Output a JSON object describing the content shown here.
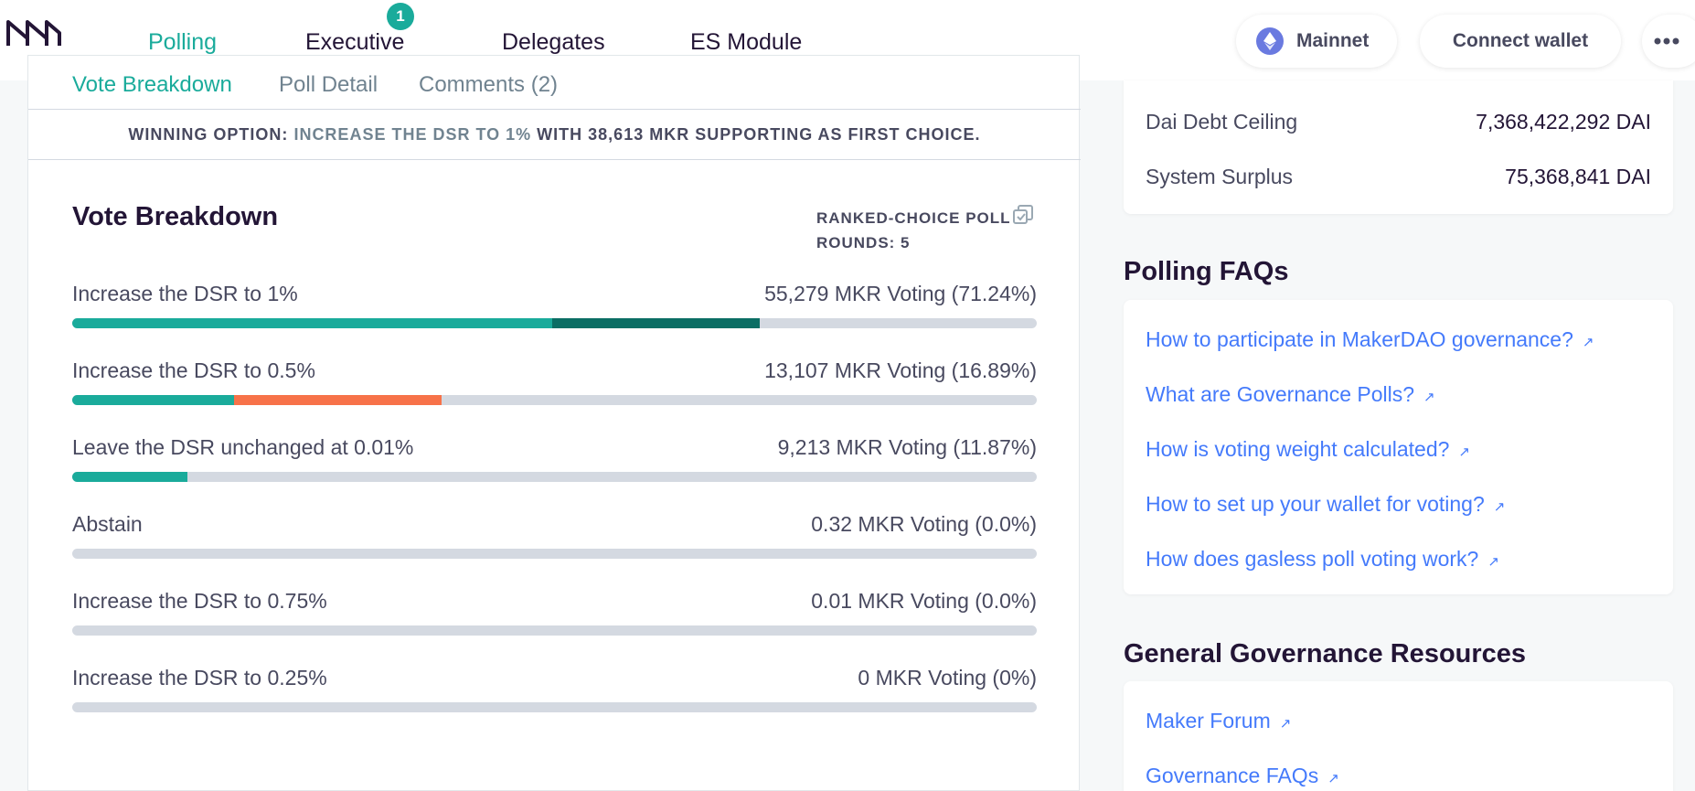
{
  "header": {
    "nav": [
      {
        "label": "Polling",
        "active": true
      },
      {
        "label": "Executive",
        "badge": "1"
      },
      {
        "label": "Delegates"
      },
      {
        "label": "ES Module"
      }
    ],
    "network_label": "Mainnet",
    "connect_label": "Connect wallet",
    "more_icon": "more-horizontal-icon"
  },
  "tabs": [
    {
      "label": "Vote Breakdown",
      "active": true
    },
    {
      "label": "Poll Detail"
    },
    {
      "label": "Comments (2)"
    }
  ],
  "winning": {
    "prefix": "WINNING OPTION:",
    "option": "INCREASE THE DSR TO 1%",
    "suffix": "WITH 38,613 MKR SUPPORTING AS FIRST CHOICE."
  },
  "breakdown": {
    "title": "Vote Breakdown",
    "poll_type": "RANKED-CHOICE POLL",
    "rounds": "ROUNDS: 5",
    "options": [
      {
        "label": "Increase the DSR to 1%",
        "value": "55,279 MKR Voting (71.24%)"
      },
      {
        "label": "Increase the DSR to 0.5%",
        "value": "13,107 MKR Voting (16.89%)"
      },
      {
        "label": "Leave the DSR unchanged at 0.01%",
        "value": "9,213 MKR Voting (11.87%)"
      },
      {
        "label": "Abstain",
        "value": "0.32 MKR Voting (0.0%)"
      },
      {
        "label": "Increase the DSR to 0.75%",
        "value": "0.01 MKR Voting (0.0%)"
      },
      {
        "label": "Increase the DSR to 0.25%",
        "value": "0 MKR Voting (0%)"
      }
    ],
    "bar_fills": [
      [
        {
          "fraction": 0.498,
          "color": "#1aab9b"
        },
        {
          "fraction": 0.215,
          "color": "#0b6e64"
        }
      ],
      [
        {
          "fraction": 0.168,
          "color": "#1aab9b"
        },
        {
          "fraction": 0.215,
          "color": "#f77249"
        }
      ],
      [
        {
          "fraction": 0.119,
          "color": "#1aab9b"
        }
      ],
      [],
      [],
      []
    ]
  },
  "system_stats": [
    {
      "label": "Dai Debt Ceiling",
      "value": "7,368,422,292 DAI"
    },
    {
      "label": "System Surplus",
      "value": "75,368,841 DAI"
    }
  ],
  "polling_faqs": {
    "title": "Polling FAQs",
    "links": [
      "How to participate in MakerDAO governance?",
      "What are Governance Polls?",
      "How is voting weight calculated?",
      "How to set up your wallet for voting?",
      "How does gasless poll voting work?"
    ]
  },
  "resources": {
    "title": "General Governance Resources",
    "links": [
      "Maker Forum",
      "Governance FAQs"
    ]
  },
  "colors": {
    "accent": "#1aab9b",
    "accent_dark": "#0b6e64",
    "orange": "#f77249",
    "link": "#447afb",
    "bar_bg": "#d4d9e1"
  }
}
